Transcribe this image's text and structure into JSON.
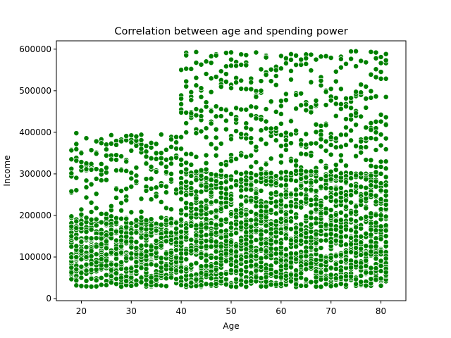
{
  "chart_data": {
    "type": "scatter",
    "title": "Correlation between age and spending power",
    "xlabel": "Age",
    "ylabel": "Income",
    "xlim": [
      15,
      85
    ],
    "ylim": [
      -5000,
      620000
    ],
    "xticks": [
      20,
      30,
      40,
      50,
      60,
      70,
      80
    ],
    "yticks": [
      0,
      100000,
      200000,
      300000,
      400000,
      500000,
      600000
    ],
    "xtick_labels": [
      "20",
      "30",
      "40",
      "50",
      "60",
      "70",
      "80"
    ],
    "ytick_labels": [
      "0",
      "100000",
      "200000",
      "300000",
      "400000",
      "500000",
      "600000"
    ],
    "grid": false,
    "marker_color": "#008000",
    "marker_edge_color": "#ffffff",
    "series": [
      {
        "x_range": [
          18,
          81
        ],
        "regions": [
          {
            "age_range": [
              18,
              81
            ],
            "income_range": [
              28000,
              195000
            ],
            "points_per_age": 30
          },
          {
            "age_range": [
              18,
              39
            ],
            "income_range": [
              195000,
              300000
            ],
            "points_per_age": 3
          },
          {
            "age_range": [
              18,
              39
            ],
            "income_range": [
              300000,
              395000
            ],
            "points_per_age": 5
          },
          {
            "age_range": [
              40,
              81
            ],
            "income_range": [
              195000,
              305000
            ],
            "points_per_age": 14
          },
          {
            "age_range": [
              40,
              81
            ],
            "income_range": [
              305000,
              460000
            ],
            "points_per_age": 6
          },
          {
            "age_range": [
              40,
              81
            ],
            "income_range": [
              460000,
              595000
            ],
            "points_per_age": 4
          }
        ]
      }
    ],
    "notable_points": [
      {
        "x": 18,
        "y": 258000
      },
      {
        "x": 19,
        "y": 398000
      },
      {
        "x": 43,
        "y": 593000
      },
      {
        "x": 47,
        "y": 585000
      },
      {
        "x": 50,
        "y": 575000
      },
      {
        "x": 55,
        "y": 592000
      },
      {
        "x": 57,
        "y": 580000
      },
      {
        "x": 61,
        "y": 578000
      },
      {
        "x": 64,
        "y": 575000
      },
      {
        "x": 65,
        "y": 578000
      },
      {
        "x": 75,
        "y": 595000
      },
      {
        "x": 79,
        "y": 578000
      },
      {
        "x": 81,
        "y": 573000
      },
      {
        "x": 72,
        "y": 556000
      },
      {
        "x": 41,
        "y": 553000
      },
      {
        "x": 35,
        "y": 350000
      },
      {
        "x": 31,
        "y": 390000
      },
      {
        "x": 38,
        "y": 383000
      },
      {
        "x": 81,
        "y": 418000
      }
    ]
  }
}
